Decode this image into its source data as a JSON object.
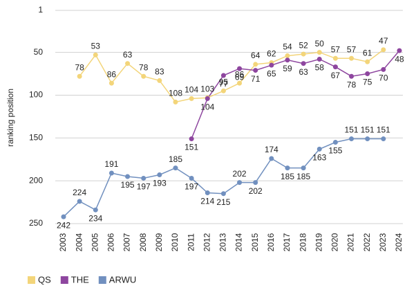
{
  "chart_data": {
    "type": "line",
    "y_label": "ranking position",
    "categories": [
      "2003",
      "2004",
      "2005",
      "2006",
      "2007",
      "2008",
      "2009",
      "2010",
      "2011",
      "2012",
      "2013",
      "2014",
      "2015",
      "2016",
      "2017",
      "2018",
      "2019",
      "2020",
      "2021",
      "2022",
      "2023",
      "2024"
    ],
    "series": [
      {
        "name": "QS",
        "color": "#f3d57a",
        "values": [
          null,
          78,
          53,
          86,
          63,
          78,
          83,
          108,
          104,
          103,
          95,
          86,
          64,
          62,
          54,
          52,
          50,
          57,
          57,
          61,
          47,
          null
        ]
      },
      {
        "name": "THE",
        "color": "#8e469f",
        "values": [
          null,
          null,
          null,
          null,
          null,
          null,
          null,
          null,
          151,
          104,
          77,
          69,
          71,
          65,
          59,
          63,
          58,
          67,
          78,
          75,
          70,
          48
        ]
      },
      {
        "name": "ARWU",
        "color": "#7190bf",
        "values": [
          242,
          224,
          234,
          191,
          195,
          197,
          193,
          185,
          197,
          214,
          215,
          202,
          202,
          174,
          185,
          185,
          163,
          155,
          151,
          151,
          151,
          null
        ]
      }
    ],
    "ylim": [
      1,
      250
    ],
    "yticks": [
      1,
      50,
      100,
      150,
      200,
      250
    ],
    "y_inverted": true,
    "grid": true,
    "legend": "bottom-left"
  }
}
